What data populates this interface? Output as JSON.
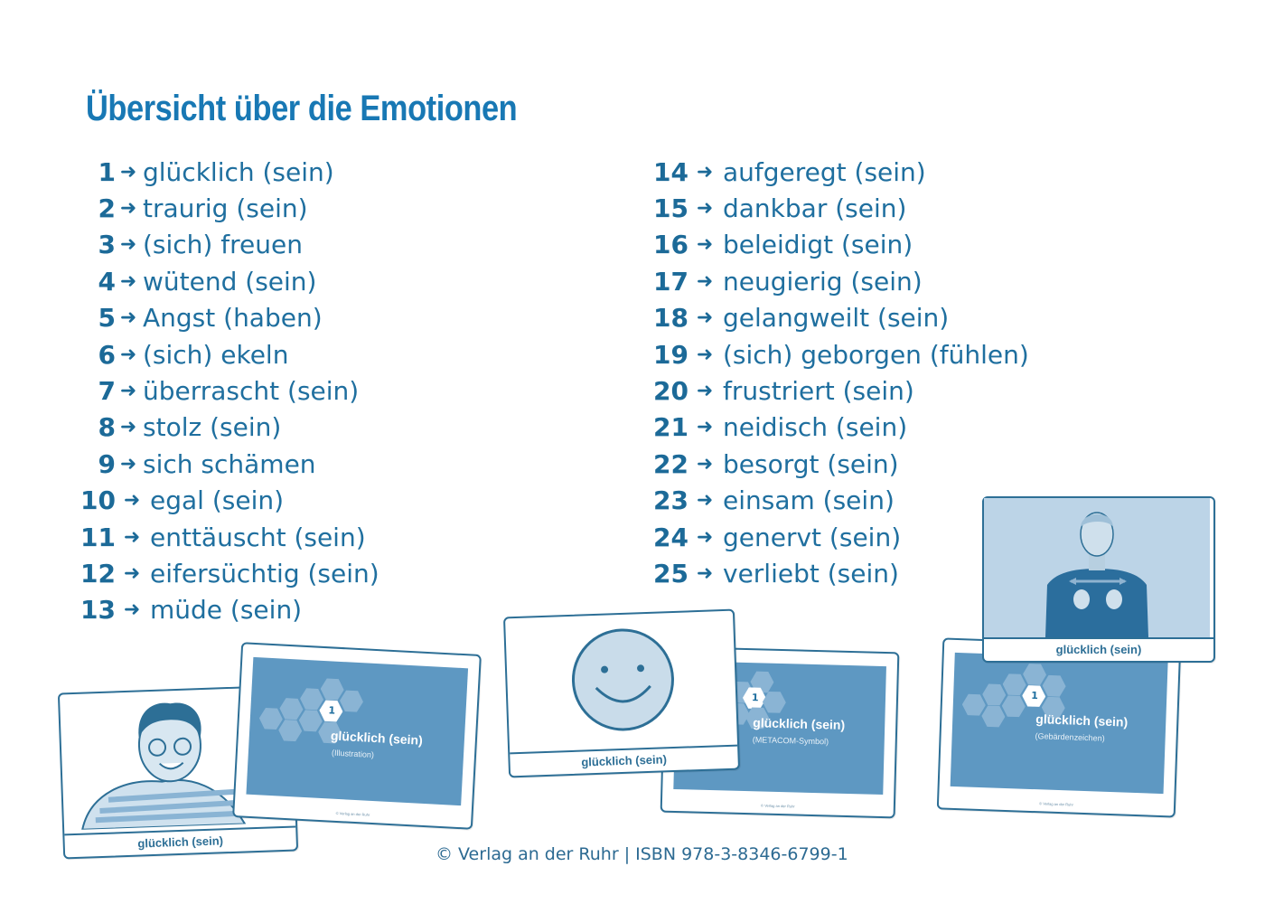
{
  "title": "Übersicht über die Emotionen",
  "left_items": [
    {
      "num": "1",
      "label": "glücklich (sein)"
    },
    {
      "num": "2",
      "label": "traurig (sein)"
    },
    {
      "num": "3",
      "label": "(sich) freuen"
    },
    {
      "num": "4",
      "label": "wütend (sein)"
    },
    {
      "num": "5",
      "label": "Angst (haben)"
    },
    {
      "num": "6",
      "label": "(sich) ekeln"
    },
    {
      "num": "7",
      "label": "überrascht (sein)"
    },
    {
      "num": "8",
      "label": "stolz (sein)"
    },
    {
      "num": "9",
      "label": "sich schämen"
    },
    {
      "num": "10",
      "label": "egal (sein)"
    },
    {
      "num": "11",
      "label": "enttäuscht (sein)"
    },
    {
      "num": "12",
      "label": "eifersüchtig (sein)"
    },
    {
      "num": "13",
      "label": "müde (sein)"
    }
  ],
  "right_items": [
    {
      "num": "14",
      "label": "aufgeregt (sein)"
    },
    {
      "num": "15",
      "label": "dankbar (sein)"
    },
    {
      "num": "16",
      "label": "beleidigt (sein)"
    },
    {
      "num": "17",
      "label": "neugierig (sein)"
    },
    {
      "num": "18",
      "label": "gelangweilt (sein)"
    },
    {
      "num": "19",
      "label": "(sich) geborgen (fühlen)"
    },
    {
      "num": "20",
      "label": "frustriert (sein)"
    },
    {
      "num": "21",
      "label": "neidisch (sein)"
    },
    {
      "num": "22",
      "label": "besorgt (sein)"
    },
    {
      "num": "23",
      "label": "einsam (sein)"
    },
    {
      "num": "24",
      "label": "genervt (sein)"
    },
    {
      "num": "25",
      "label": "verliebt (sein)"
    }
  ],
  "arrow_glyph": "➜",
  "cards": {
    "front_caption": "glücklich (sein)",
    "back_number": "1",
    "back_title": "glücklich (sein)",
    "sub_illustration": "(Illustration)",
    "sub_metacom": "(METACOM-Symbol)",
    "sub_gesture": "(Gebärdenzeichen)"
  },
  "footer": "© Verlag an der Ruhr | ISBN 978-3-8346-6799-1",
  "colors": {
    "text": "#1f6f9f",
    "title": "#1878b4",
    "card_fill": "#5e98c2"
  }
}
